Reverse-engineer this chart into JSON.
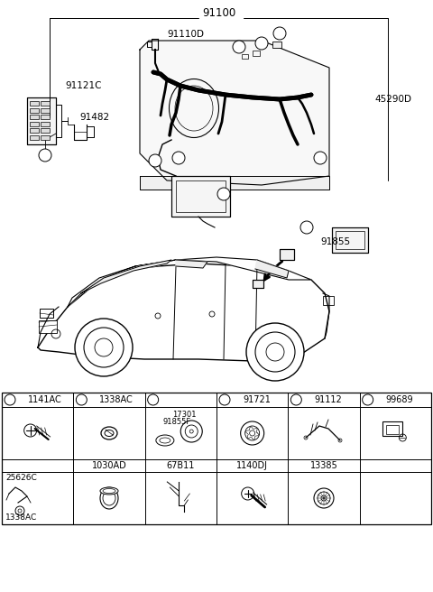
{
  "bg_color": "#ffffff",
  "part_labels": {
    "main": "91100",
    "sub1": "91110D",
    "sub2": "91121C",
    "sub3": "91482",
    "sub4": "45290D",
    "sub5": "91855"
  },
  "callout_letters": [
    "a",
    "b",
    "c",
    "d",
    "e",
    "f"
  ],
  "table_headers": [
    {
      "letter": "a",
      "code": "1141AC"
    },
    {
      "letter": "b",
      "code": "1338AC"
    },
    {
      "letter": "c",
      "code": ""
    },
    {
      "letter": "d",
      "code": "91721"
    },
    {
      "letter": "e",
      "code": "91112"
    },
    {
      "letter": "f",
      "code": "99689"
    }
  ],
  "table_row1_codes": [
    "",
    "1030AD",
    "67B11",
    "1140DJ",
    "13385",
    ""
  ],
  "figsize": [
    4.8,
    6.56
  ],
  "dpi": 100
}
